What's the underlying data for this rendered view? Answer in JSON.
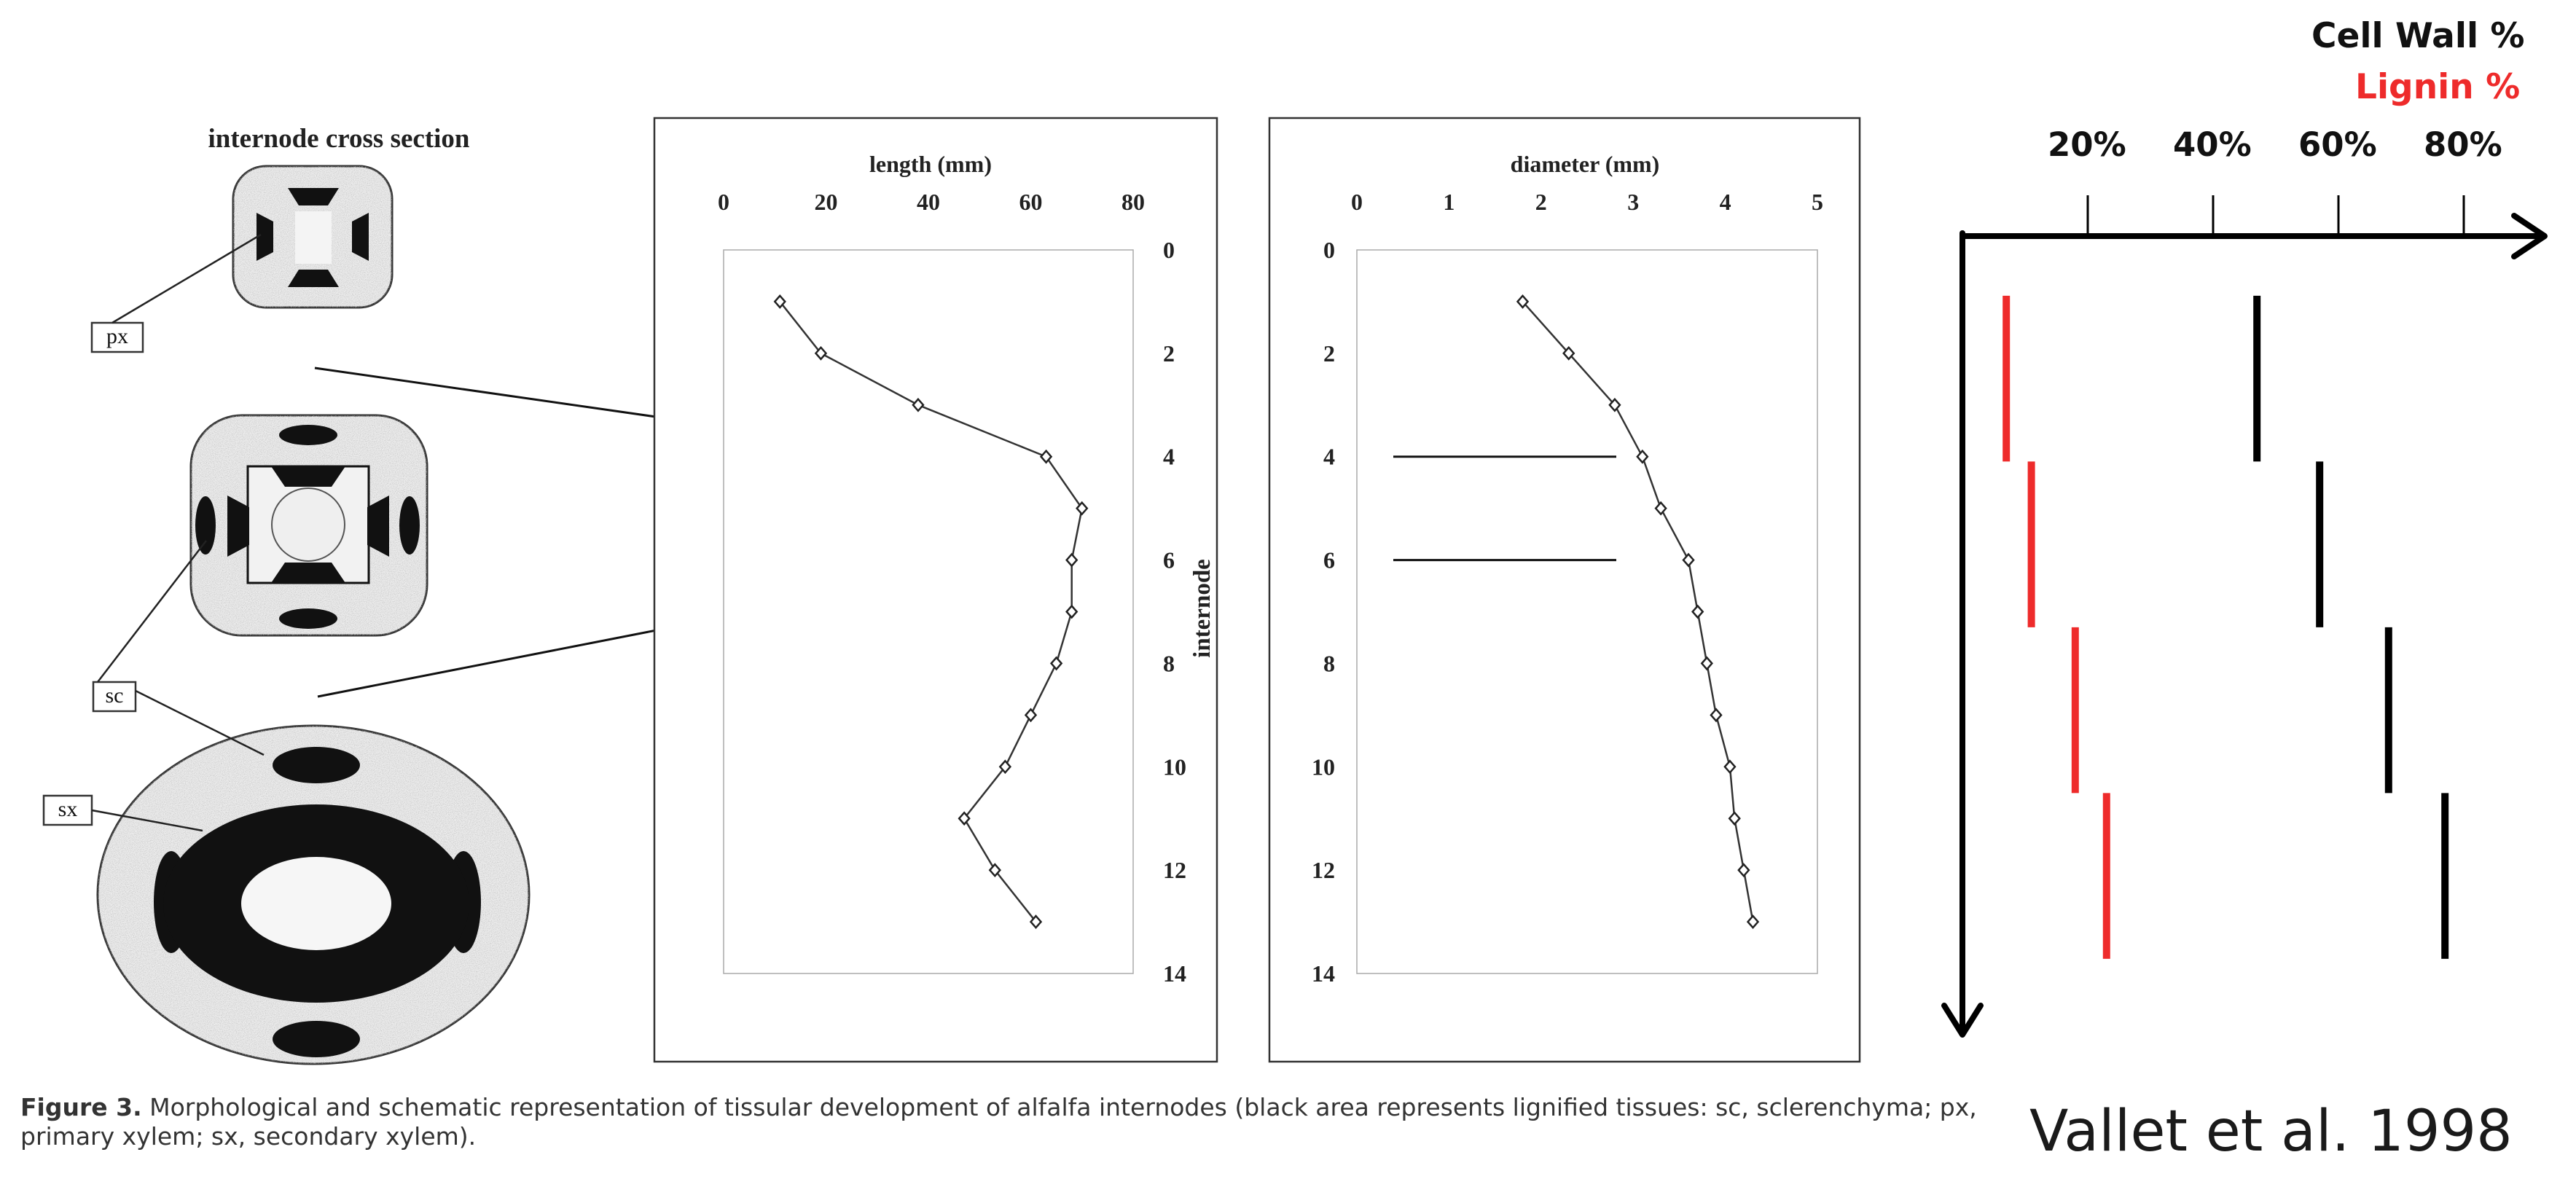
{
  "left_panel": {
    "title": "internode cross section",
    "labels": {
      "px": "px",
      "sc": "sc",
      "sx": "sx"
    }
  },
  "caption": {
    "lead": "Figure 3.",
    "text": " Morphological and schematic representation of tissular development of alfalfa internodes (black area represents lignified tissues:  sc, sclerenchyma; px, primary xylem; sx, secondary xylem)."
  },
  "citation": "Vallet et al. 1998",
  "chart_data": [
    {
      "type": "line",
      "title": "length (mm)",
      "ylabel": "internode",
      "xlim": [
        0,
        80
      ],
      "x_ticks": [
        "0",
        "20",
        "40",
        "60",
        "80"
      ],
      "ylim": [
        0,
        14
      ],
      "y_ticks": [
        "0",
        "2",
        "4",
        "6",
        "8",
        "10",
        "12",
        "14"
      ],
      "y_inverted": true,
      "x_axis_position": "top",
      "points": [
        {
          "internode": 1,
          "value": 11
        },
        {
          "internode": 2,
          "value": 19
        },
        {
          "internode": 3,
          "value": 38
        },
        {
          "internode": 4,
          "value": 63
        },
        {
          "internode": 5,
          "value": 70
        },
        {
          "internode": 6,
          "value": 68
        },
        {
          "internode": 7,
          "value": 68
        },
        {
          "internode": 8,
          "value": 65
        },
        {
          "internode": 9,
          "value": 60
        },
        {
          "internode": 10,
          "value": 55
        },
        {
          "internode": 11,
          "value": 47
        },
        {
          "internode": 12,
          "value": 53
        },
        {
          "internode": 13,
          "value": 61
        }
      ]
    },
    {
      "type": "line",
      "title": "diameter (mm)",
      "xlim": [
        0,
        5
      ],
      "x_ticks": [
        "0",
        "1",
        "2",
        "3",
        "4",
        "5"
      ],
      "ylim": [
        0,
        14
      ],
      "y_ticks": [
        "0",
        "2",
        "4",
        "6",
        "8",
        "10",
        "12",
        "14"
      ],
      "y_inverted": true,
      "x_axis_position": "top",
      "points": [
        {
          "internode": 1,
          "value": 1.8
        },
        {
          "internode": 2,
          "value": 2.3
        },
        {
          "internode": 3,
          "value": 2.8
        },
        {
          "internode": 4,
          "value": 3.1
        },
        {
          "internode": 5,
          "value": 3.3
        },
        {
          "internode": 6,
          "value": 3.6
        },
        {
          "internode": 7,
          "value": 3.7
        },
        {
          "internode": 8,
          "value": 3.8
        },
        {
          "internode": 9,
          "value": 3.9
        },
        {
          "internode": 10,
          "value": 4.05
        },
        {
          "internode": 11,
          "value": 4.1
        },
        {
          "internode": 12,
          "value": 4.2
        },
        {
          "internode": 13,
          "value": 4.3
        }
      ],
      "reference_internodes": [
        4,
        6
      ]
    },
    {
      "type": "bar",
      "title": "Cell Wall %",
      "subtitle": "Lignin %",
      "x_ticks": [
        "20%",
        "40%",
        "60%",
        "80%"
      ],
      "xlim": [
        0,
        90
      ],
      "y_inverted": true,
      "colors": {
        "cell_wall": "#000000",
        "lignin": "#ee2b2b"
      },
      "series": [
        {
          "name": "Cell Wall %",
          "segments": [
            {
              "value": 47,
              "from": 0.9,
              "to": 3.4
            },
            {
              "value": 57,
              "from": 3.4,
              "to": 5.9
            },
            {
              "value": 68,
              "from": 5.9,
              "to": 8.4
            },
            {
              "value": 77,
              "from": 8.4,
              "to": 10.9
            }
          ]
        },
        {
          "name": "Lignin %",
          "segments": [
            {
              "value": 7,
              "from": 0.9,
              "to": 3.4
            },
            {
              "value": 11,
              "from": 3.4,
              "to": 5.9
            },
            {
              "value": 18,
              "from": 5.9,
              "to": 8.4
            },
            {
              "value": 23,
              "from": 8.4,
              "to": 10.9
            }
          ]
        }
      ]
    }
  ]
}
